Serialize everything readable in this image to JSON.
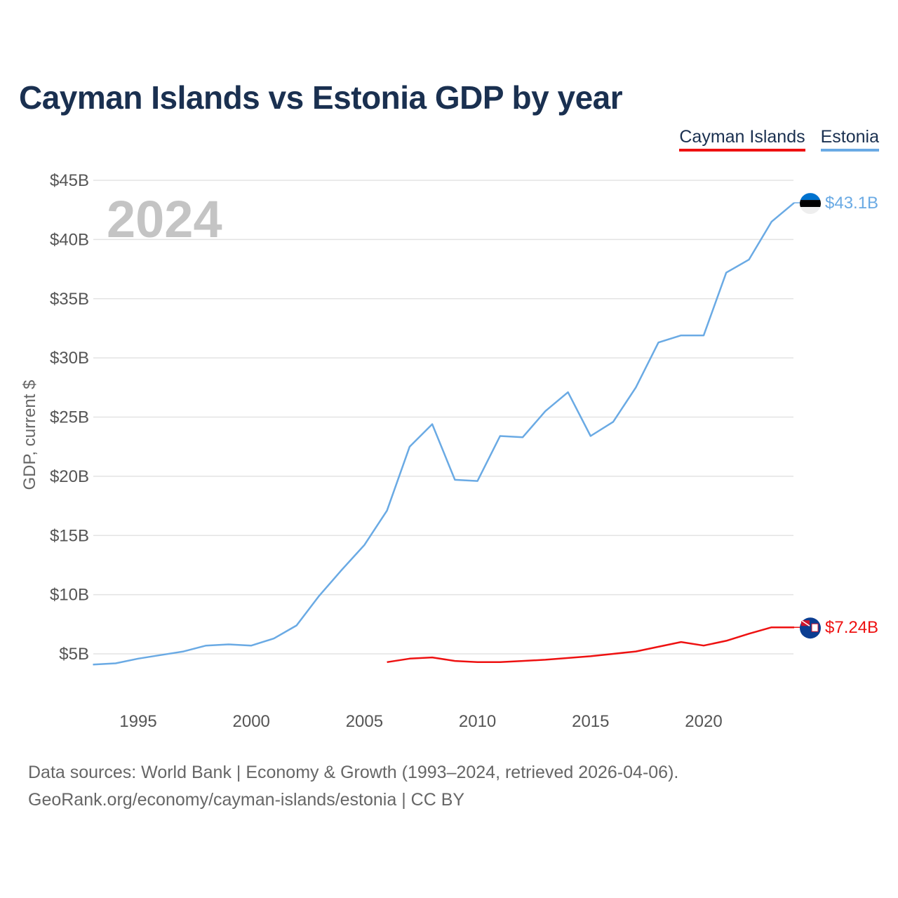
{
  "title": "Cayman Islands vs Estonia GDP by year",
  "legend": [
    {
      "name": "Cayman Islands",
      "color": "#ee1111"
    },
    {
      "name": "Estonia",
      "color": "#6aaae4"
    }
  ],
  "year_label": "2024",
  "footer": {
    "line1": "Data sources: World Bank | Economy & Growth (1993–2024, retrieved 2026-04-06).",
    "line2": "GeoRank.org/economy/cayman-islands/estonia | CC BY"
  },
  "chart_data": {
    "type": "line",
    "title": "Cayman Islands vs Estonia GDP by year",
    "xlabel": "",
    "ylabel": "GDP, current $",
    "xlim": [
      1993,
      2024
    ],
    "ylim": [
      2,
      45
    ],
    "x_ticks": [
      1995,
      2000,
      2005,
      2010,
      2015,
      2020
    ],
    "y_ticks": [
      5,
      10,
      15,
      20,
      25,
      30,
      35,
      40,
      45
    ],
    "y_tick_labels": [
      "$5B",
      "$10B",
      "$15B",
      "$20B",
      "$25B",
      "$30B",
      "$35B",
      "$40B",
      "$45B"
    ],
    "grid": true,
    "series": [
      {
        "name": "Estonia",
        "color": "#6aaae4",
        "end_label": "$43.1B",
        "x": [
          1993,
          1994,
          1995,
          1996,
          1997,
          1998,
          1999,
          2000,
          2001,
          2002,
          2003,
          2004,
          2005,
          2006,
          2007,
          2008,
          2009,
          2010,
          2011,
          2012,
          2013,
          2014,
          2015,
          2016,
          2017,
          2018,
          2019,
          2020,
          2021,
          2022,
          2023,
          2024
        ],
        "values": [
          4.1,
          4.2,
          4.6,
          4.9,
          5.2,
          5.7,
          5.8,
          5.7,
          6.3,
          7.4,
          9.9,
          12.1,
          14.2,
          17.1,
          22.5,
          24.4,
          19.7,
          19.6,
          23.4,
          23.3,
          25.5,
          27.1,
          23.4,
          24.6,
          27.5,
          31.3,
          31.9,
          31.9,
          37.2,
          38.3,
          41.5,
          43.1
        ]
      },
      {
        "name": "Cayman Islands",
        "color": "#ee1111",
        "end_label": "$7.24B",
        "x": [
          2006,
          2007,
          2008,
          2009,
          2010,
          2011,
          2012,
          2013,
          2014,
          2015,
          2016,
          2017,
          2018,
          2019,
          2020,
          2021,
          2022,
          2023,
          2024
        ],
        "values": [
          4.3,
          4.6,
          4.7,
          4.4,
          4.3,
          4.3,
          4.4,
          4.5,
          4.65,
          4.8,
          5.0,
          5.2,
          5.6,
          6.0,
          5.7,
          6.1,
          6.7,
          7.24,
          7.24
        ]
      }
    ]
  }
}
